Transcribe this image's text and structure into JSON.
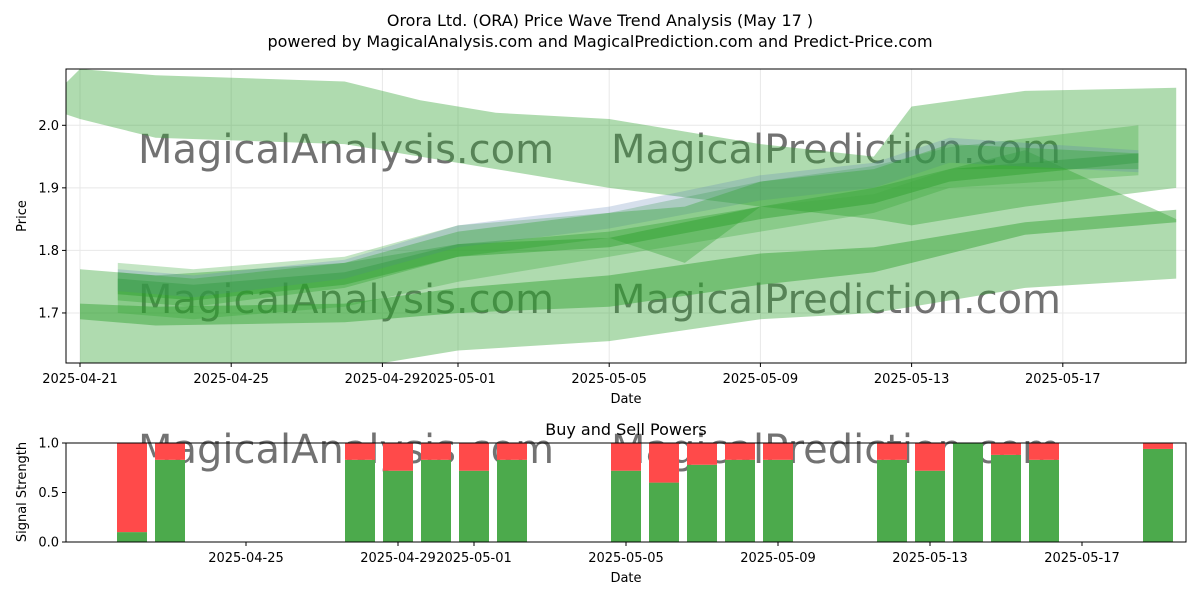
{
  "header": {
    "title": "Orora Ltd. (ORA) Price Wave Trend Analysis (May 17 )",
    "subtitle": "powered by MagicalAnalysis.com and MagicalPrediction.com and Predict-Price.com"
  },
  "watermarks": [
    "MagicalAnalysis.com",
    "MagicalPrediction.com"
  ],
  "colors": {
    "band_green": "#2ca02c",
    "band_blue": "#5b7fb3",
    "buy": "#4caa4c",
    "sell": "#ff4a4a",
    "grid": "#e8e8e8",
    "watermark": "#dddddd"
  },
  "chart_data": [
    {
      "type": "area",
      "title": "",
      "xlabel": "Date",
      "ylabel": "Price",
      "xlim": [
        "2025-04-20",
        "2025-05-21"
      ],
      "ylim": [
        1.62,
        2.09
      ],
      "x_ticks": [
        "2025-04-21",
        "2025-04-25",
        "2025-04-29",
        "2025-05-01",
        "2025-05-05",
        "2025-05-09",
        "2025-05-13",
        "2025-05-17"
      ],
      "y_ticks": [
        1.7,
        1.8,
        1.9,
        2.0
      ],
      "grid": true,
      "series": [
        {
          "color": "green",
          "opacity": 0.38,
          "x": [
            "2025-04-20",
            "2025-04-21",
            "2025-04-23",
            "2025-04-28",
            "2025-04-30",
            "2025-05-02",
            "2025-05-05",
            "2025-05-09",
            "2025-05-12",
            "2025-05-13",
            "2025-05-16",
            "2025-05-20"
          ],
          "upper": [
            2.03,
            2.09,
            2.08,
            2.07,
            2.04,
            2.02,
            2.01,
            1.97,
            1.95,
            2.03,
            2.055,
            2.06
          ],
          "lower": [
            2.03,
            2.01,
            1.98,
            1.97,
            1.95,
            1.93,
            1.9,
            1.87,
            1.85,
            1.84,
            1.87,
            1.9
          ]
        },
        {
          "color": "green",
          "opacity": 0.38,
          "x": [
            "2025-04-21",
            "2025-04-23",
            "2025-04-28",
            "2025-05-01",
            "2025-05-05",
            "2025-05-09",
            "2025-05-12",
            "2025-05-16",
            "2025-05-20"
          ],
          "upper": [
            1.77,
            1.76,
            1.78,
            1.81,
            1.83,
            1.87,
            1.9,
            1.96,
            1.85
          ],
          "lower": [
            1.62,
            1.61,
            1.61,
            1.64,
            1.655,
            1.69,
            1.7,
            1.74,
            1.755
          ]
        },
        {
          "color": "green",
          "opacity": 0.45,
          "x": [
            "2025-04-21",
            "2025-04-23",
            "2025-04-28",
            "2025-05-01",
            "2025-05-05",
            "2025-05-09",
            "2025-05-12",
            "2025-05-16",
            "2025-05-20"
          ],
          "upper": [
            1.715,
            1.71,
            1.715,
            1.74,
            1.76,
            1.795,
            1.805,
            1.845,
            1.865
          ],
          "lower": [
            1.69,
            1.68,
            1.685,
            1.7,
            1.71,
            1.745,
            1.765,
            1.825,
            1.845
          ]
        },
        {
          "color": "green",
          "opacity": 0.28,
          "x": [
            "2025-04-22",
            "2025-04-24",
            "2025-04-28",
            "2025-05-01",
            "2025-05-05",
            "2025-05-09",
            "2025-05-12",
            "2025-05-14",
            "2025-05-19"
          ],
          "upper": [
            1.78,
            1.77,
            1.79,
            1.84,
            1.86,
            1.91,
            1.935,
            1.965,
            2.0
          ],
          "lower": [
            1.7,
            1.69,
            1.71,
            1.75,
            1.79,
            1.83,
            1.86,
            1.9,
            1.92
          ]
        },
        {
          "color": "green",
          "opacity": 0.45,
          "x": [
            "2025-04-22",
            "2025-04-24",
            "2025-04-28",
            "2025-05-01",
            "2025-05-05",
            "2025-05-09",
            "2025-05-12",
            "2025-05-14",
            "2025-05-19"
          ],
          "upper": [
            1.755,
            1.745,
            1.765,
            1.81,
            1.82,
            1.87,
            1.89,
            1.93,
            1.955
          ],
          "lower": [
            1.73,
            1.72,
            1.745,
            1.79,
            1.805,
            1.85,
            1.875,
            1.91,
            1.94
          ]
        },
        {
          "color": "blue",
          "opacity": 0.25,
          "x": [
            "2025-04-22",
            "2025-04-24",
            "2025-04-28",
            "2025-05-01",
            "2025-05-05",
            "2025-05-09",
            "2025-05-12",
            "2025-05-14",
            "2025-05-19"
          ],
          "upper": [
            1.77,
            1.76,
            1.785,
            1.84,
            1.87,
            1.92,
            1.94,
            1.98,
            1.96
          ],
          "lower": [
            1.735,
            1.725,
            1.755,
            1.805,
            1.835,
            1.88,
            1.9,
            1.94,
            1.925
          ]
        },
        {
          "color": "green",
          "opacity": 0.35,
          "x": [
            "2025-04-22",
            "2025-04-24",
            "2025-04-28",
            "2025-05-01",
            "2025-05-05",
            "2025-05-07",
            "2025-05-09",
            "2025-05-12",
            "2025-05-14",
            "2025-05-19"
          ],
          "upper": [
            1.765,
            1.755,
            1.78,
            1.83,
            1.86,
            1.87,
            1.91,
            1.93,
            1.97,
            1.955
          ],
          "lower": [
            1.72,
            1.71,
            1.74,
            1.79,
            1.82,
            1.78,
            1.87,
            1.89,
            1.93,
            1.93
          ]
        }
      ]
    },
    {
      "type": "bar",
      "title": "Buy and Sell Powers",
      "xlabel": "Date",
      "ylabel": "Signal Strength",
      "ylim": [
        0.0,
        1.0
      ],
      "y_ticks": [
        0.0,
        0.5,
        1.0
      ],
      "x_ticks": [
        "2025-04-25",
        "2025-04-29",
        "2025-05-01",
        "2025-05-05",
        "2025-05-09",
        "2025-05-13",
        "2025-05-17"
      ],
      "dates": [
        "2025-04-22",
        "2025-04-23",
        "2025-04-28",
        "2025-04-29",
        "2025-04-30",
        "2025-05-01",
        "2025-05-02",
        "2025-05-05",
        "2025-05-06",
        "2025-05-07",
        "2025-05-08",
        "2025-05-09",
        "2025-05-12",
        "2025-05-13",
        "2025-05-14",
        "2025-05-15",
        "2025-05-16",
        "2025-05-19"
      ],
      "series": [
        {
          "name": "Buy",
          "values": [
            0.1,
            0.83,
            0.83,
            0.72,
            0.83,
            0.72,
            0.83,
            0.72,
            0.6,
            0.78,
            0.83,
            0.83,
            0.83,
            0.72,
            1.0,
            0.88,
            0.83,
            0.94
          ]
        },
        {
          "name": "Sell",
          "values": [
            0.9,
            0.17,
            0.17,
            0.28,
            0.17,
            0.28,
            0.17,
            0.28,
            0.4,
            0.22,
            0.17,
            0.17,
            0.17,
            0.28,
            0.0,
            0.12,
            0.17,
            0.06
          ]
        }
      ]
    }
  ]
}
